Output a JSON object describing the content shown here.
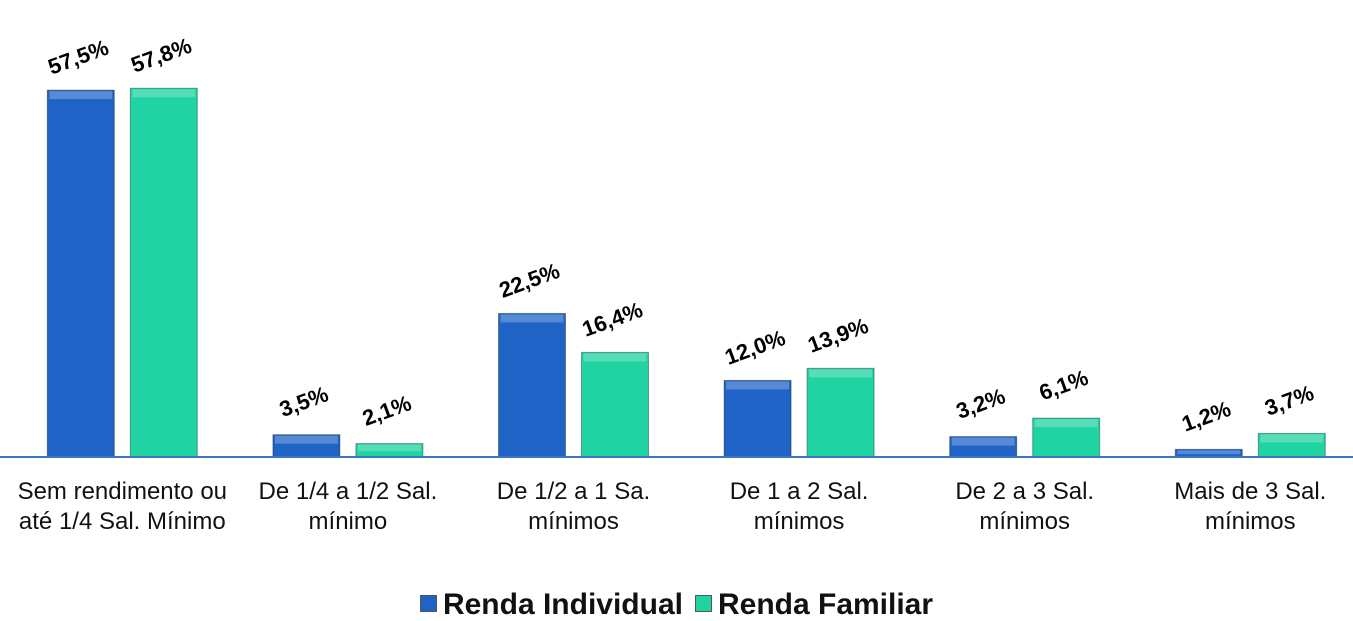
{
  "chart_data": {
    "type": "bar",
    "categories": [
      "Sem rendimento ou até 1/4 Sal. Mínimo",
      "De 1/4 a 1/2 Sal. mínimo",
      "De 1/2 a 1 Sa. mínimos",
      "De 1 a 2 Sal. mínimos",
      "De 2 a 3 Sal. mínimos",
      "Mais de 3 Sal. mínimos"
    ],
    "series": [
      {
        "name": "Renda Individual",
        "color": "#1f63c6",
        "values": [
          57.5,
          3.5,
          22.5,
          12.0,
          3.2,
          1.2
        ],
        "value_labels": [
          "57,5%",
          "3,5%",
          "22,5%",
          "12,0%",
          "3,2%",
          "1,2%"
        ]
      },
      {
        "name": "Renda Familiar",
        "color": "#1fd3a2",
        "values": [
          57.8,
          2.1,
          16.4,
          13.9,
          6.1,
          3.7
        ],
        "value_labels": [
          "57,8%",
          "2,1%",
          "16,4%",
          "13,9%",
          "6,1%",
          "3,7%"
        ]
      }
    ],
    "legend": "bottom"
  }
}
